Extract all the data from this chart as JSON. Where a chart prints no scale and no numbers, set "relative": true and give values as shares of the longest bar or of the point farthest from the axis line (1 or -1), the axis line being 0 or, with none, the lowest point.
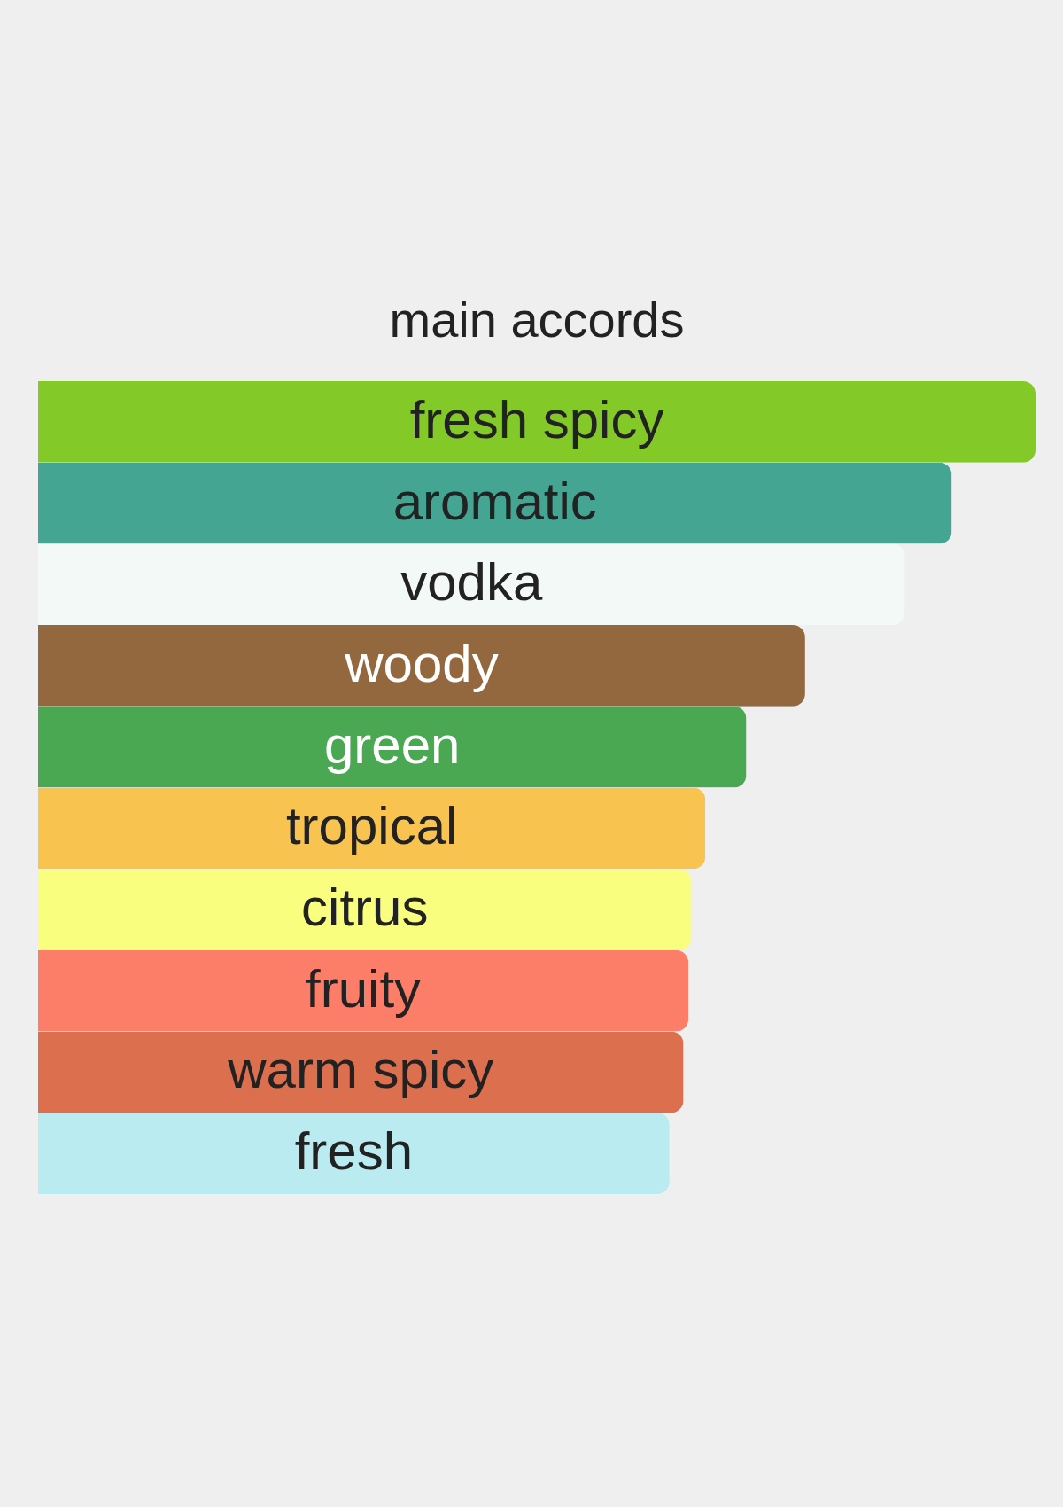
{
  "chart_data": {
    "type": "bar",
    "orientation": "horizontal",
    "relative": true,
    "title": "main accords",
    "categories": [
      "fresh spicy",
      "aromatic",
      "vodka",
      "woody",
      "green",
      "tropical",
      "citrus",
      "fruity",
      "warm spicy",
      "fresh"
    ],
    "values": [
      1,
      0.916,
      0.869,
      0.769,
      0.71,
      0.669,
      0.655,
      0.652,
      0.647,
      0.633
    ],
    "colors": [
      "#83c928",
      "#43a592",
      "#f3f9f7",
      "#94683f",
      "#4aa852",
      "#f8c44f",
      "#f9fe7e",
      "#fc7e68",
      "#dc6f4d",
      "#b9ebf1"
    ]
  }
}
